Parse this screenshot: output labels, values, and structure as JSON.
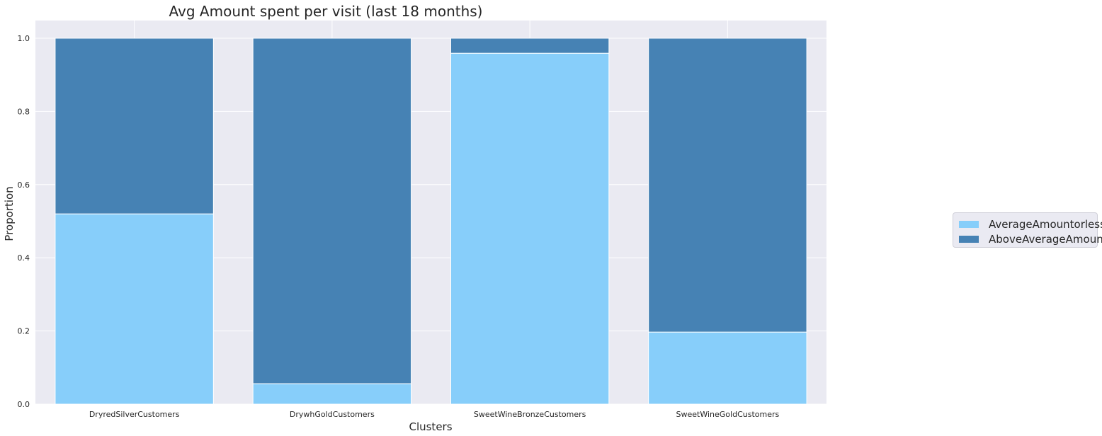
{
  "chart_data": {
    "type": "bar",
    "stacked": true,
    "title": "Avg Amount spent per visit (last 18 months)",
    "xlabel": "Clusters",
    "ylabel": "Proportion",
    "ylim": [
      0,
      1.0
    ],
    "yticks": [
      "0.0",
      "0.2",
      "0.4",
      "0.6",
      "0.8",
      "1.0"
    ],
    "categories": [
      "DryredSilverCustomers",
      "DrywhGoldCustomers",
      "SweetWineBronzeCustomers",
      "SweetWineGoldCustomers"
    ],
    "series": [
      {
        "name": "AverageAmountorless",
        "color": "#87cefa",
        "values": [
          0.52,
          0.056,
          0.959,
          0.197
        ]
      },
      {
        "name": "AboveAverageAmount",
        "color": "#4682b4",
        "values": [
          0.48,
          0.944,
          0.041,
          0.803
        ]
      }
    ],
    "grid": true,
    "legend_position": "right"
  }
}
